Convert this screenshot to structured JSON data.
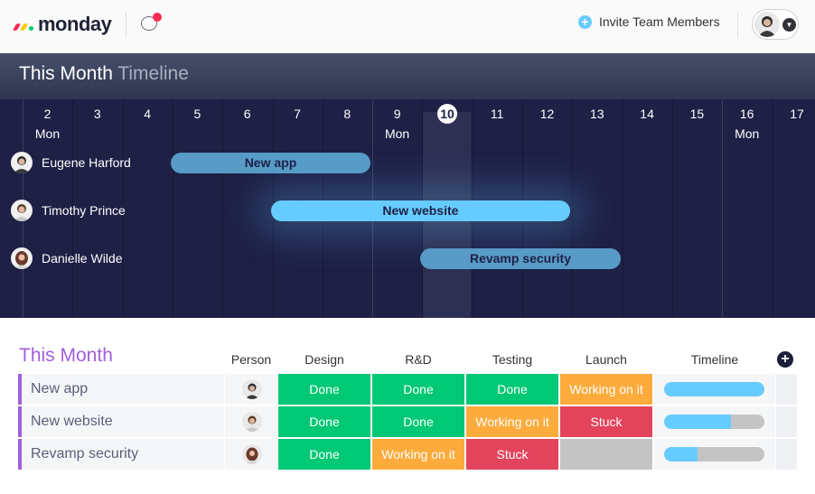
{
  "header": {
    "logo_text": "monday",
    "invite_label": "Invite Team Members"
  },
  "timeline": {
    "title_main": "This Month",
    "title_sub": "Timeline",
    "days": [
      {
        "num": "2",
        "weekday": "Mon"
      },
      {
        "num": "3",
        "weekday": ""
      },
      {
        "num": "4",
        "weekday": ""
      },
      {
        "num": "5",
        "weekday": ""
      },
      {
        "num": "6",
        "weekday": ""
      },
      {
        "num": "7",
        "weekday": ""
      },
      {
        "num": "8",
        "weekday": ""
      },
      {
        "num": "9",
        "weekday": "Mon"
      },
      {
        "num": "10",
        "weekday": ""
      },
      {
        "num": "11",
        "weekday": ""
      },
      {
        "num": "12",
        "weekday": ""
      },
      {
        "num": "13",
        "weekday": ""
      },
      {
        "num": "14",
        "weekday": ""
      },
      {
        "num": "15",
        "weekday": ""
      },
      {
        "num": "16",
        "weekday": "Mon"
      },
      {
        "num": "17",
        "weekday": ""
      }
    ],
    "today": "10",
    "people": [
      {
        "name": "Eugene Harford",
        "task": "New app",
        "start_day": 5,
        "end_day": 8
      },
      {
        "name": "Timothy Prince",
        "task": "New website",
        "start_day": 7,
        "end_day": 12
      },
      {
        "name": "Danielle Wilde",
        "task": "Revamp security",
        "start_day": 10,
        "end_day": 13
      }
    ]
  },
  "board": {
    "group_title": "This Month",
    "columns": [
      "Person",
      "Design",
      "R&D",
      "Testing",
      "Launch",
      "Timeline"
    ],
    "rows": [
      {
        "name": "New app",
        "statuses": [
          "Done",
          "Done",
          "Done",
          "Working on it"
        ],
        "timeline_progress": 1.0
      },
      {
        "name": "New website",
        "statuses": [
          "Done",
          "Done",
          "Working on it",
          "Stuck"
        ],
        "timeline_progress": 0.67
      },
      {
        "name": "Revamp security",
        "statuses": [
          "Done",
          "Working on it",
          "Stuck",
          ""
        ],
        "timeline_progress": 0.33
      }
    ]
  },
  "colors": {
    "done": "#00c875",
    "working": "#fdab3d",
    "stuck": "#e2445c",
    "empty": "#c4c4c4",
    "group": "#a25ddc",
    "timeline_fill": "#66ccff",
    "timeline_bg": "#1e2046"
  }
}
